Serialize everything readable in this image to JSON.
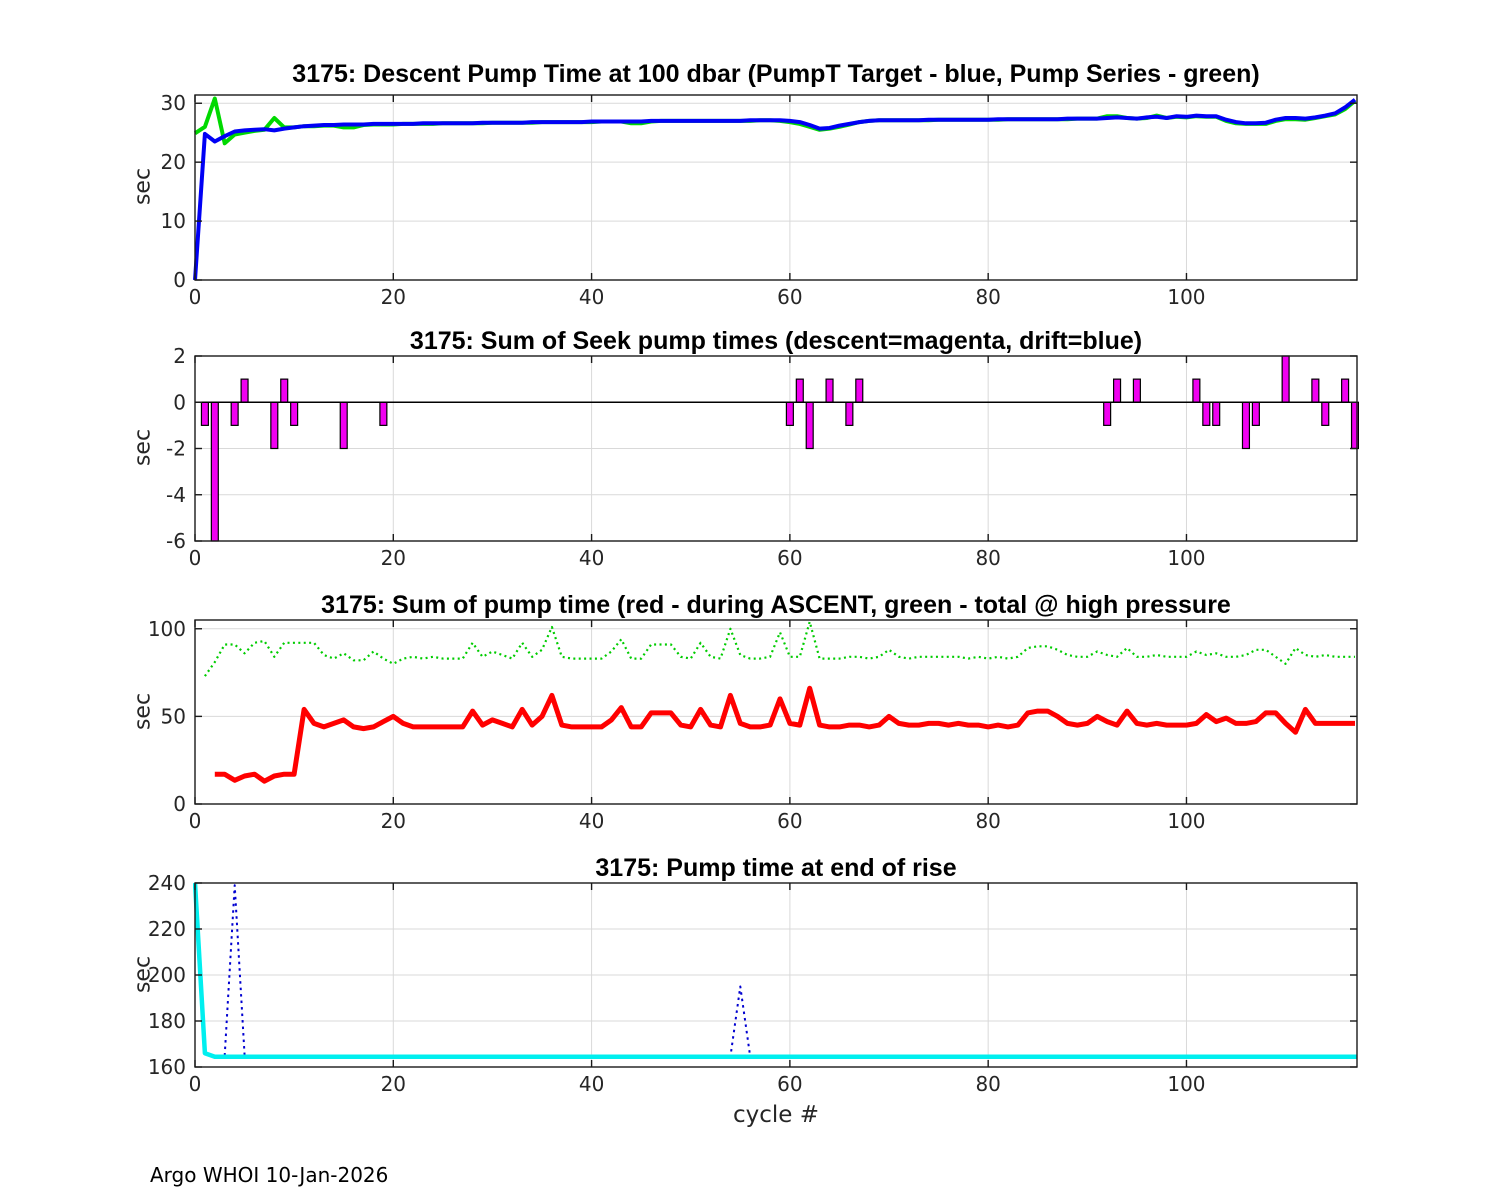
{
  "figure": {
    "footer": "Argo WHOI 10-Jan-2026",
    "xlabel": "cycle #",
    "background": "#ffffff",
    "axis_color": "#1a1a1a",
    "grid_color": "#d9d9d9",
    "tick_label_color": "#262626"
  },
  "chart_data": [
    {
      "type": "line",
      "title": "3175: Descent Pump Time at 100 dbar (PumpT Target - blue, Pump Series - green)",
      "ylabel": "sec",
      "xlim": [
        0,
        117.2
      ],
      "ylim": [
        0,
        31.4
      ],
      "xticks": [
        0,
        20,
        40,
        60,
        80,
        100
      ],
      "yticks": [
        0,
        10,
        20,
        30
      ],
      "grid": true,
      "legend_position": "in-title",
      "series": [
        {
          "name": "Pump Series",
          "color": "#00d900",
          "width": 4,
          "dash": "",
          "x0": 0,
          "y": [
            24.9,
            26,
            30.8,
            23.2,
            24.7,
            25,
            25.3,
            25.5,
            27.5,
            25.9,
            25.9,
            26.1,
            26.1,
            26.2,
            26.2,
            25.9,
            25.9,
            26.3,
            26.4,
            26.4,
            26.4,
            26.5,
            26.5,
            26.5,
            26.5,
            26.6,
            26.6,
            26.6,
            26.6,
            26.6,
            26.7,
            26.7,
            26.7,
            26.7,
            26.7,
            26.8,
            26.8,
            26.8,
            26.8,
            26.8,
            26.8,
            26.9,
            26.9,
            26.9,
            26.6,
            26.6,
            26.9,
            27,
            27,
            27,
            27,
            27,
            27,
            27,
            27,
            27,
            27,
            27.1,
            27.1,
            27,
            26.8,
            26.5,
            26,
            25.5,
            25.7,
            26,
            26.4,
            26.8,
            27,
            27.1,
            27.1,
            27.1,
            27.1,
            27.1,
            27.1,
            27.2,
            27.2,
            27.2,
            27.2,
            27.2,
            27.2,
            27.2,
            27.3,
            27.3,
            27.3,
            27.3,
            27.3,
            27.3,
            27.3,
            27.4,
            27.4,
            27.4,
            27.8,
            27.8,
            27.5,
            27.4,
            27.5,
            27.9,
            27.5,
            27.7,
            27.6,
            27.8,
            27.7,
            27.7,
            27,
            26.6,
            26.5,
            26.5,
            26.5,
            27,
            27.3,
            27.3,
            27.2,
            27.5,
            27.8,
            28.1,
            29,
            30.4
          ]
        },
        {
          "name": "PumpT Target",
          "color": "#0000f5",
          "width": 4,
          "dash": "",
          "x0": 0,
          "y": [
            0,
            24.8,
            23.5,
            24.4,
            25.2,
            25.4,
            25.5,
            25.6,
            25.4,
            25.7,
            25.9,
            26.1,
            26.2,
            26.3,
            26.3,
            26.4,
            26.4,
            26.4,
            26.5,
            26.5,
            26.5,
            26.5,
            26.5,
            26.6,
            26.6,
            26.6,
            26.6,
            26.6,
            26.6,
            26.7,
            26.7,
            26.7,
            26.7,
            26.7,
            26.8,
            26.8,
            26.8,
            26.8,
            26.8,
            26.8,
            26.9,
            26.9,
            26.9,
            26.9,
            26.9,
            26.9,
            27,
            27,
            27,
            27,
            27,
            27,
            27,
            27,
            27,
            27,
            27.1,
            27.1,
            27.1,
            27.1,
            27,
            26.8,
            26.3,
            25.7,
            25.8,
            26.2,
            26.5,
            26.8,
            27,
            27.1,
            27.1,
            27.1,
            27.1,
            27.1,
            27.2,
            27.2,
            27.2,
            27.2,
            27.2,
            27.2,
            27.2,
            27.3,
            27.3,
            27.3,
            27.3,
            27.3,
            27.3,
            27.3,
            27.4,
            27.4,
            27.4,
            27.4,
            27.5,
            27.6,
            27.5,
            27.4,
            27.6,
            27.7,
            27.5,
            27.8,
            27.7,
            27.9,
            27.8,
            27.8,
            27.2,
            26.8,
            26.6,
            26.6,
            26.7,
            27.2,
            27.5,
            27.5,
            27.4,
            27.6,
            27.9,
            28.3,
            29.3,
            30.6
          ]
        }
      ]
    },
    {
      "type": "bar",
      "title": "3175: Sum of Seek pump times (descent=magenta, drift=blue)",
      "ylabel": "sec",
      "xlim": [
        0,
        117.2
      ],
      "ylim": [
        -6,
        2
      ],
      "xticks": [
        0,
        20,
        40,
        60,
        80,
        100
      ],
      "yticks": [
        2,
        0,
        -2,
        -4,
        -6
      ],
      "grid": true,
      "baseline": 0,
      "bars": {
        "name": "Seek pump times (descent)",
        "color": "#f000f0",
        "edge": "#000000",
        "bar_width": 0.7,
        "x": [
          1,
          2,
          4,
          5,
          8,
          9,
          10,
          15,
          19,
          60,
          61,
          62,
          64,
          66,
          67,
          92,
          93,
          95,
          101,
          102,
          103,
          106,
          107,
          110,
          113,
          114,
          116,
          117
        ],
        "values": [
          -1,
          -6,
          -1,
          1,
          -2,
          1,
          -1,
          -2,
          -1,
          -1,
          1,
          -2,
          1,
          -1,
          1,
          -1,
          1,
          1,
          1,
          -1,
          -1,
          -2,
          -1,
          2,
          1,
          -1,
          1,
          -2
        ]
      }
    },
    {
      "type": "line",
      "title": "3175: Sum of pump time (red - during ASCENT, green - total @ high pressure",
      "ylabel": "sec",
      "xlim": [
        0,
        117.2
      ],
      "ylim": [
        0,
        105
      ],
      "xticks": [
        0,
        20,
        40,
        60,
        80,
        100
      ],
      "yticks": [
        0,
        50,
        100
      ],
      "grid": true,
      "legend_position": "in-title",
      "series": [
        {
          "name": "total @ high pressure",
          "color": "#00cc00",
          "width": 2.2,
          "dash": "2 3.4",
          "x0": 1,
          "y": [
            73,
            81,
            91,
            91,
            86,
            92,
            93,
            84,
            92,
            92,
            92,
            92,
            85,
            83,
            86,
            82,
            82,
            87,
            83,
            80,
            83,
            84,
            83,
            84,
            83,
            83,
            83,
            92,
            84,
            87,
            85,
            83,
            92,
            84,
            88,
            101,
            84,
            83,
            83,
            83,
            83,
            87,
            94,
            83,
            83,
            91,
            91,
            91,
            84,
            83,
            92,
            84,
            83,
            100,
            85,
            83,
            83,
            84,
            98,
            84,
            84,
            104,
            83,
            83,
            83,
            84,
            84,
            83,
            84,
            88,
            84,
            83,
            84,
            84,
            84,
            84,
            84,
            83,
            84,
            83,
            84,
            83,
            84,
            89,
            90,
            90,
            88,
            85,
            84,
            84,
            87,
            85,
            84,
            89,
            84,
            84,
            85,
            84,
            84,
            84,
            87,
            85,
            86,
            84,
            84,
            85,
            88,
            88,
            84,
            80,
            89,
            85,
            84,
            85,
            84,
            84,
            84
          ]
        },
        {
          "name": "during ASCENT",
          "color": "#ff0000",
          "width": 5,
          "dash": "",
          "x0": 2,
          "y": [
            17,
            17,
            13.5,
            16,
            17,
            13,
            16,
            17,
            17,
            54,
            46,
            44,
            46,
            48,
            44,
            43,
            44,
            47,
            50,
            46,
            44,
            44,
            44,
            44,
            44,
            44,
            53,
            45,
            48,
            46,
            44,
            54,
            45,
            50,
            62,
            45,
            44,
            44,
            44,
            44,
            48,
            55,
            44,
            44,
            52,
            52,
            52,
            45,
            44,
            54,
            45,
            44,
            62,
            46,
            44,
            44,
            45,
            60,
            46,
            45,
            66,
            45,
            44,
            44,
            45,
            45,
            44,
            45,
            50,
            46,
            45,
            45,
            46,
            46,
            45,
            46,
            45,
            45,
            44,
            45,
            44,
            45,
            52,
            53,
            53,
            50,
            46,
            45,
            46,
            50,
            47,
            45,
            53,
            46,
            45,
            46,
            45,
            45,
            45,
            46,
            51,
            47,
            49,
            46,
            46,
            47,
            52,
            52,
            46,
            41,
            54,
            46,
            46,
            46,
            46,
            46
          ]
        }
      ]
    },
    {
      "type": "line",
      "title": "3175: Pump time at end of rise",
      "ylabel": "sec",
      "xlim": [
        0,
        117.2
      ],
      "ylim": [
        160,
        240
      ],
      "xticks": [
        0,
        20,
        40,
        60,
        80,
        100
      ],
      "yticks": [
        160,
        180,
        200,
        220,
        240
      ],
      "grid": true,
      "show_xlabel": true,
      "series": [
        {
          "name": "end of rise (dotted)",
          "color": "#0000d0",
          "width": 2,
          "dash": "2.5 4",
          "x": [
            3,
            4,
            5,
            54,
            55,
            56,
            117
          ],
          "y": [
            165,
            239,
            165,
            164.5,
            195,
            164.5,
            164.5
          ]
        },
        {
          "name": "end of rise",
          "color": "#00efef",
          "width": 4.5,
          "dash": "",
          "x": [
            0,
            1,
            2,
            117.2
          ],
          "y": [
            240,
            166,
            164.5,
            164.5
          ]
        }
      ]
    }
  ]
}
